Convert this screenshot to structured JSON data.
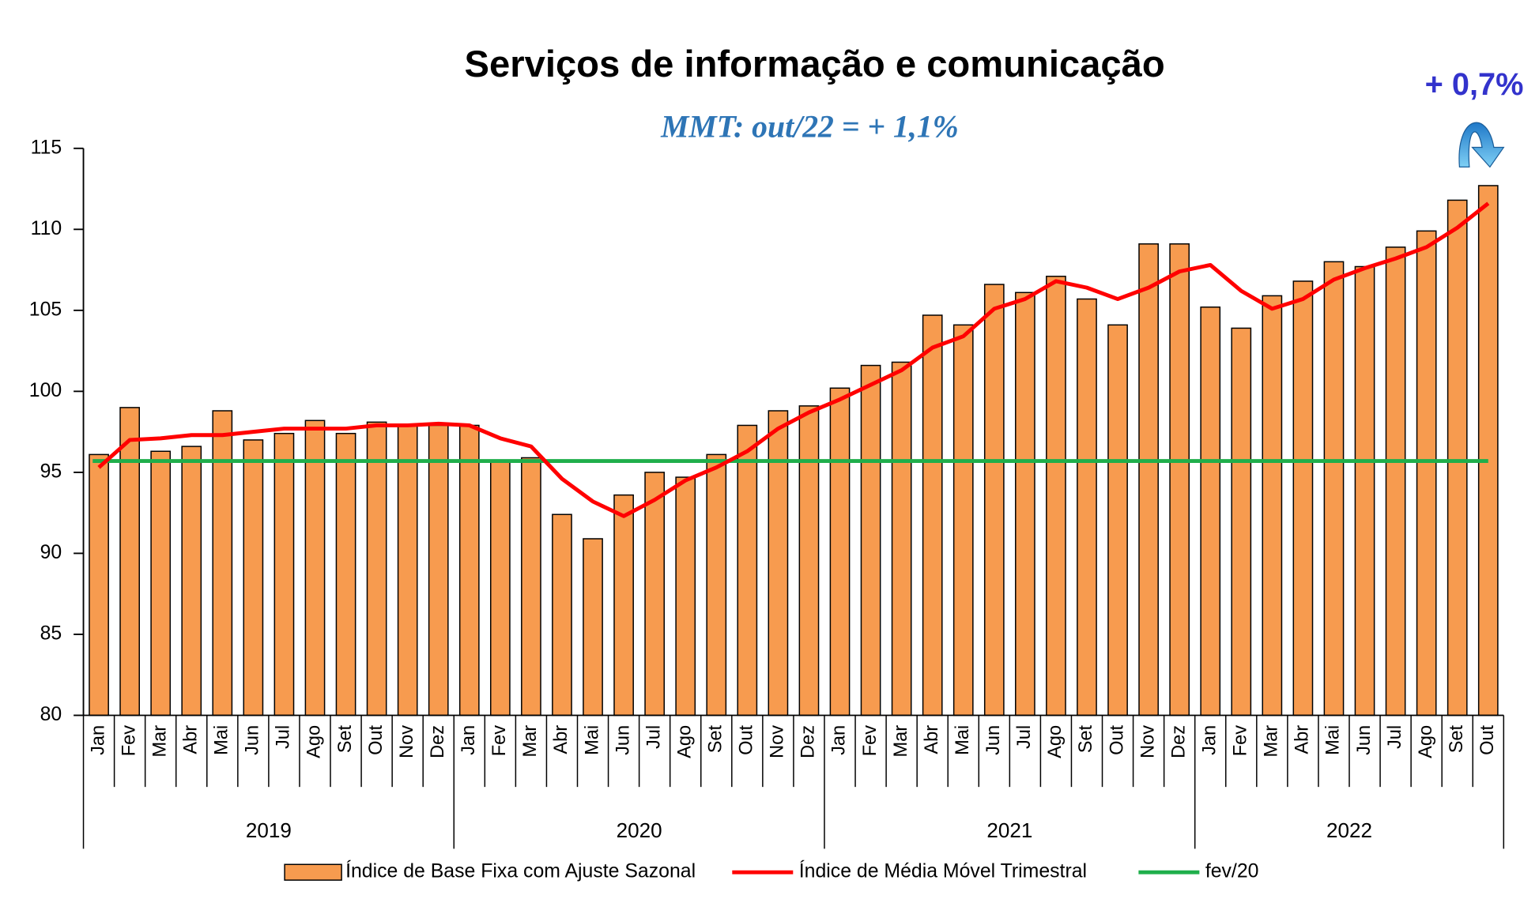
{
  "chart_data": {
    "type": "bar",
    "title": "Serviços de informação e comunicação",
    "subtitle": "MMT: out/22 = + 1,1%",
    "annotation": "+ 0,7%",
    "groups": [
      {
        "label": "2019",
        "categories": [
          "Jan",
          "Fev",
          "Mar",
          "Abr",
          "Mai",
          "Jun",
          "Jul",
          "Ago",
          "Set",
          "Out",
          "Nov",
          "Dez"
        ]
      },
      {
        "label": "2020",
        "categories": [
          "Jan",
          "Fev",
          "Mar",
          "Abr",
          "Mai",
          "Jun",
          "Jul",
          "Ago",
          "Set",
          "Out",
          "Nov",
          "Dez"
        ]
      },
      {
        "label": "2021",
        "categories": [
          "Jan",
          "Fev",
          "Mar",
          "Abr",
          "Mai",
          "Jun",
          "Jul",
          "Ago",
          "Set",
          "Out",
          "Nov",
          "Dez"
        ]
      },
      {
        "label": "2022",
        "categories": [
          "Jan",
          "Fev",
          "Mar",
          "Abr",
          "Mai",
          "Jun",
          "Jul",
          "Ago",
          "Set",
          "Out"
        ]
      }
    ],
    "series": [
      {
        "name": "Índice de Base Fixa com Ajuste Sazonal",
        "type": "bar",
        "color": "#F79B4F",
        "values": [
          96.1,
          99.0,
          96.3,
          96.6,
          98.8,
          97.0,
          97.4,
          98.2,
          97.4,
          98.1,
          97.9,
          97.9,
          97.9,
          95.7,
          95.9,
          92.4,
          90.9,
          93.6,
          95.0,
          94.7,
          96.1,
          97.9,
          98.8,
          99.1,
          100.2,
          101.6,
          101.8,
          104.7,
          104.1,
          106.6,
          106.1,
          107.1,
          105.7,
          104.1,
          109.1,
          109.1,
          105.2,
          103.9,
          105.9,
          106.8,
          108.0,
          107.7,
          108.9,
          109.9,
          111.8,
          112.7
        ]
      },
      {
        "name": "Índice de Média Móvel Trimestral",
        "type": "line",
        "color": "#FF0000",
        "values": [
          95.3,
          97.0,
          97.1,
          97.3,
          97.3,
          97.5,
          97.7,
          97.7,
          97.7,
          97.9,
          97.9,
          98.0,
          97.9,
          97.1,
          96.6,
          94.6,
          93.2,
          92.3,
          93.3,
          94.5,
          95.3,
          96.3,
          97.7,
          98.7,
          99.5,
          100.4,
          101.3,
          102.7,
          103.4,
          105.1,
          105.7,
          106.8,
          106.4,
          105.7,
          106.4,
          107.4,
          107.8,
          106.2,
          105.1,
          105.7,
          106.9,
          107.6,
          108.2,
          108.9,
          110.1,
          111.6
        ]
      },
      {
        "name": "fev/20",
        "type": "hline",
        "color": "#1FAF4B",
        "value": 95.7
      }
    ],
    "ylim": [
      80,
      115
    ],
    "yticks": [
      80,
      85,
      90,
      95,
      100,
      105,
      110,
      115
    ],
    "legend": "bottom"
  }
}
